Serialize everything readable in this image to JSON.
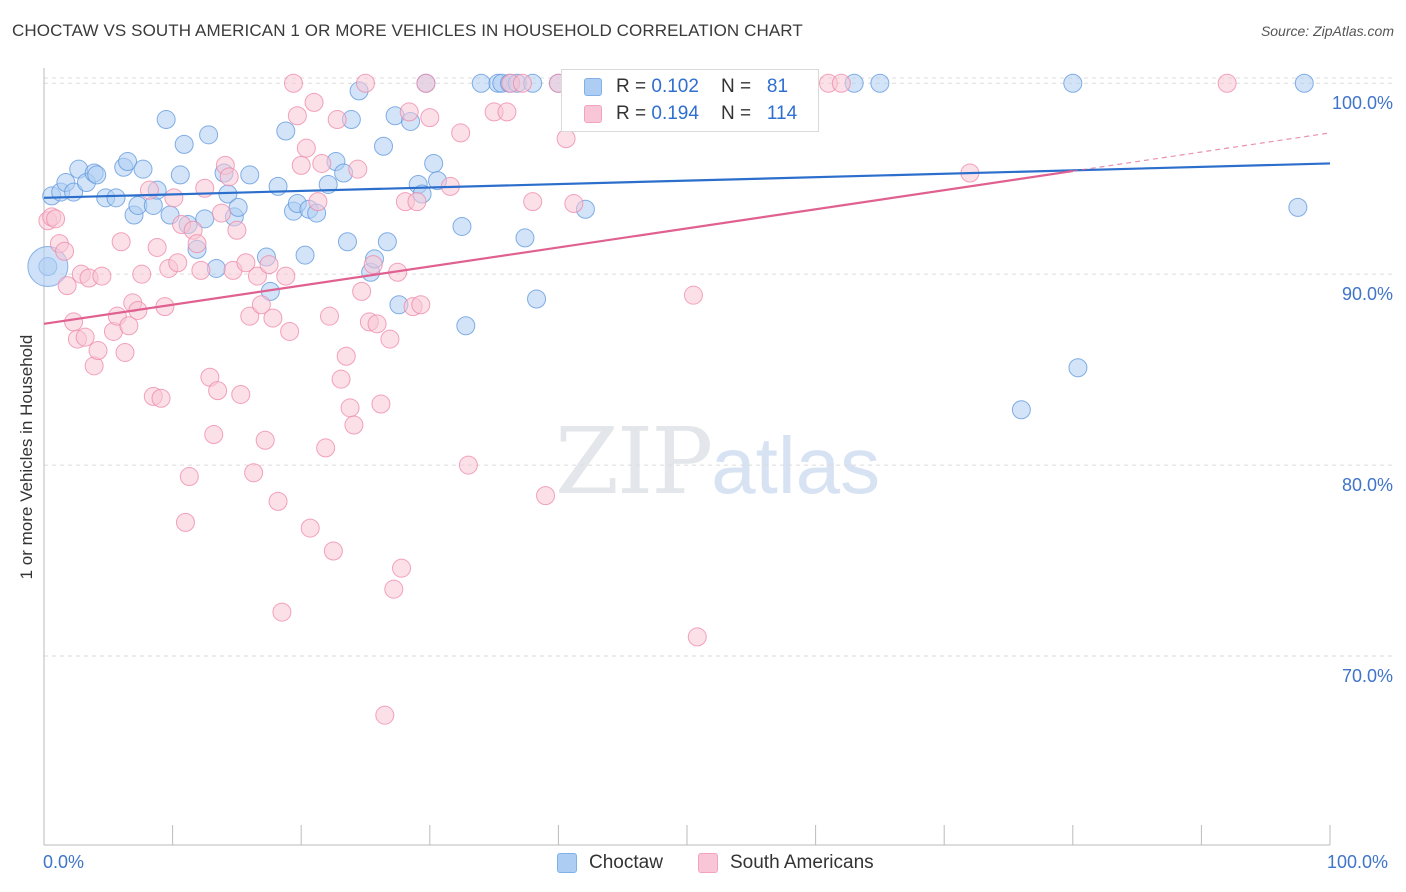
{
  "title": "CHOCTAW VS SOUTH AMERICAN 1 OR MORE VEHICLES IN HOUSEHOLD CORRELATION CHART",
  "source": "Source: ZipAtlas.com",
  "watermark": {
    "part1": "ZIP",
    "part2": "atlas"
  },
  "legend_top": {
    "rows": [
      {
        "r_label": "R = ",
        "r_value": "0.102",
        "n_label": "N = ",
        "n_value": "81",
        "color": "#7fb0e8"
      },
      {
        "r_label": "R = ",
        "r_value": "0.194",
        "n_label": "N = ",
        "n_value": "114",
        "color": "#f3a3bf"
      }
    ]
  },
  "legend_bottom": [
    {
      "label": "Choctaw",
      "color": "#aecdf3"
    },
    {
      "label": "South Americans",
      "color": "#f8c6d6"
    }
  ],
  "axes": {
    "y_label": "1 or more Vehicles in Household",
    "x_min_label": "0.0%",
    "x_max_label": "100.0%",
    "y_ticks": [
      {
        "value": 100,
        "label": "100.0%"
      },
      {
        "value": 90,
        "label": "90.0%"
      },
      {
        "value": 80,
        "label": "80.0%"
      },
      {
        "value": 70,
        "label": "70.0%"
      }
    ]
  },
  "chart_data": {
    "type": "scatter",
    "xlim": [
      0,
      100
    ],
    "ylim": [
      60.1,
      100.8
    ],
    "grid": true,
    "series": [
      {
        "name": "Choctaw",
        "color": "#5c95dd",
        "fill": "#aecdf3",
        "trend": {
          "x0": 0,
          "y0": 94.0,
          "x1": 100,
          "y1": 95.8,
          "color": "#2b6ecb"
        },
        "points": [
          [
            0.3,
            90.4
          ],
          [
            0.6,
            94.1
          ],
          [
            1.3,
            94.3
          ],
          [
            1.7,
            94.8
          ],
          [
            2.3,
            94.3
          ],
          [
            2.7,
            95.5
          ],
          [
            3.3,
            94.8
          ],
          [
            3.9,
            95.3
          ],
          [
            4.1,
            95.2
          ],
          [
            4.8,
            94.0
          ],
          [
            5.6,
            94.0
          ],
          [
            6.2,
            95.6
          ],
          [
            6.5,
            95.9
          ],
          [
            7.0,
            93.1
          ],
          [
            7.3,
            93.6
          ],
          [
            7.7,
            95.5
          ],
          [
            8.5,
            93.6
          ],
          [
            8.8,
            94.4
          ],
          [
            9.5,
            98.1
          ],
          [
            9.8,
            93.1
          ],
          [
            10.6,
            95.2
          ],
          [
            10.9,
            96.8
          ],
          [
            11.2,
            92.6
          ],
          [
            11.9,
            91.3
          ],
          [
            12.5,
            92.9
          ],
          [
            12.8,
            97.3
          ],
          [
            13.4,
            90.3
          ],
          [
            14.0,
            95.3
          ],
          [
            14.3,
            94.2
          ],
          [
            14.8,
            93.0
          ],
          [
            15.1,
            93.5
          ],
          [
            16.0,
            95.2
          ],
          [
            17.3,
            90.9
          ],
          [
            17.6,
            89.1
          ],
          [
            18.2,
            94.6
          ],
          [
            18.8,
            97.5
          ],
          [
            19.4,
            93.3
          ],
          [
            19.7,
            93.7
          ],
          [
            20.3,
            91.0
          ],
          [
            20.6,
            93.4
          ],
          [
            21.2,
            93.2
          ],
          [
            22.1,
            94.7
          ],
          [
            22.7,
            95.9
          ],
          [
            23.3,
            95.3
          ],
          [
            23.6,
            91.7
          ],
          [
            23.9,
            98.1
          ],
          [
            24.5,
            99.6
          ],
          [
            25.4,
            90.1
          ],
          [
            25.7,
            90.8
          ],
          [
            26.4,
            96.7
          ],
          [
            26.7,
            91.7
          ],
          [
            27.3,
            98.3
          ],
          [
            27.6,
            88.4
          ],
          [
            28.5,
            98.0
          ],
          [
            29.1,
            94.7
          ],
          [
            29.4,
            94.2
          ],
          [
            29.7,
            100.0
          ],
          [
            30.3,
            95.8
          ],
          [
            30.6,
            94.9
          ],
          [
            32.5,
            92.5
          ],
          [
            32.8,
            87.3
          ],
          [
            34.0,
            100.0
          ],
          [
            35.3,
            100.0
          ],
          [
            35.6,
            100.0
          ],
          [
            36.2,
            100.0
          ],
          [
            36.8,
            100.0
          ],
          [
            37.4,
            91.9
          ],
          [
            38.0,
            100.0
          ],
          [
            38.3,
            88.7
          ],
          [
            40.0,
            100.0
          ],
          [
            41.5,
            100.0
          ],
          [
            42.1,
            93.4
          ],
          [
            50.0,
            100.0
          ],
          [
            52.0,
            100.0
          ],
          [
            55.0,
            100.0
          ],
          [
            63.0,
            100.0
          ],
          [
            65.0,
            100.0
          ],
          [
            76.0,
            82.9
          ],
          [
            80.0,
            100.0
          ],
          [
            80.4,
            85.1
          ],
          [
            97.5,
            93.5
          ],
          [
            98.0,
            100.0
          ]
        ],
        "point_radius": 9,
        "large_point": {
          "x": 0.3,
          "y": 90.4,
          "r": 20
        }
      },
      {
        "name": "South Americans",
        "color": "#ef86a8",
        "fill": "#f8c6d6",
        "trend": {
          "x0": 0,
          "y0": 87.4,
          "x1": 80,
          "y1": 95.4,
          "x2": 100,
          "y2": 97.4,
          "color": "#e0608f"
        },
        "points": [
          [
            0.3,
            92.8
          ],
          [
            0.6,
            93.0
          ],
          [
            0.9,
            92.9
          ],
          [
            1.2,
            91.6
          ],
          [
            1.6,
            91.2
          ],
          [
            1.8,
            89.4
          ],
          [
            2.3,
            87.5
          ],
          [
            2.6,
            86.6
          ],
          [
            2.9,
            90.0
          ],
          [
            3.2,
            86.7
          ],
          [
            3.5,
            89.8
          ],
          [
            3.9,
            85.2
          ],
          [
            4.2,
            86.0
          ],
          [
            4.5,
            89.9
          ],
          [
            5.4,
            87.0
          ],
          [
            5.7,
            87.8
          ],
          [
            6.0,
            91.7
          ],
          [
            6.3,
            85.9
          ],
          [
            6.6,
            87.3
          ],
          [
            6.9,
            88.5
          ],
          [
            7.3,
            88.1
          ],
          [
            7.6,
            90.0
          ],
          [
            8.2,
            94.4
          ],
          [
            8.5,
            83.6
          ],
          [
            8.8,
            91.4
          ],
          [
            9.1,
            83.5
          ],
          [
            9.4,
            88.3
          ],
          [
            9.7,
            90.3
          ],
          [
            10.1,
            94.0
          ],
          [
            10.4,
            90.6
          ],
          [
            10.7,
            92.6
          ],
          [
            11.0,
            77.0
          ],
          [
            11.3,
            79.4
          ],
          [
            11.6,
            92.3
          ],
          [
            11.9,
            91.6
          ],
          [
            12.2,
            90.2
          ],
          [
            12.5,
            94.5
          ],
          [
            12.9,
            84.6
          ],
          [
            13.2,
            81.6
          ],
          [
            13.5,
            83.9
          ],
          [
            13.8,
            93.2
          ],
          [
            14.1,
            95.7
          ],
          [
            14.4,
            95.1
          ],
          [
            14.7,
            90.2
          ],
          [
            15.0,
            92.3
          ],
          [
            15.3,
            83.7
          ],
          [
            15.7,
            90.6
          ],
          [
            16.0,
            87.8
          ],
          [
            16.3,
            79.6
          ],
          [
            16.6,
            89.9
          ],
          [
            16.9,
            88.4
          ],
          [
            17.2,
            81.3
          ],
          [
            17.5,
            90.5
          ],
          [
            17.8,
            87.7
          ],
          [
            18.2,
            78.1
          ],
          [
            18.5,
            72.3
          ],
          [
            18.8,
            89.9
          ],
          [
            19.1,
            87.0
          ],
          [
            19.4,
            100.0
          ],
          [
            19.7,
            98.3
          ],
          [
            20.0,
            95.7
          ],
          [
            20.4,
            96.6
          ],
          [
            20.7,
            76.7
          ],
          [
            21.0,
            99.0
          ],
          [
            21.3,
            93.8
          ],
          [
            21.6,
            95.8
          ],
          [
            21.9,
            80.9
          ],
          [
            22.2,
            87.8
          ],
          [
            22.5,
            75.5
          ],
          [
            22.8,
            98.1
          ],
          [
            23.1,
            84.5
          ],
          [
            23.5,
            85.7
          ],
          [
            23.8,
            83.0
          ],
          [
            24.1,
            82.1
          ],
          [
            24.4,
            95.5
          ],
          [
            24.7,
            89.1
          ],
          [
            25.0,
            100.0
          ],
          [
            25.3,
            87.5
          ],
          [
            25.6,
            90.5
          ],
          [
            25.9,
            87.4
          ],
          [
            26.2,
            83.2
          ],
          [
            26.5,
            66.9
          ],
          [
            26.9,
            86.6
          ],
          [
            27.2,
            73.5
          ],
          [
            27.5,
            90.1
          ],
          [
            27.8,
            74.6
          ],
          [
            28.1,
            93.8
          ],
          [
            28.4,
            98.5
          ],
          [
            28.7,
            88.3
          ],
          [
            29.0,
            93.8
          ],
          [
            29.3,
            88.4
          ],
          [
            29.7,
            100.0
          ],
          [
            30.0,
            98.2
          ],
          [
            31.6,
            94.6
          ],
          [
            32.4,
            97.4
          ],
          [
            33.0,
            80.0
          ],
          [
            35.0,
            98.5
          ],
          [
            36.0,
            98.5
          ],
          [
            36.3,
            100.0
          ],
          [
            37.2,
            100.0
          ],
          [
            38.0,
            93.8
          ],
          [
            39.0,
            78.4
          ],
          [
            40.0,
            100.0
          ],
          [
            40.6,
            97.1
          ],
          [
            41.2,
            93.7
          ],
          [
            45.0,
            100.0
          ],
          [
            48.0,
            100.0
          ],
          [
            50.0,
            100.0
          ],
          [
            50.5,
            88.9
          ],
          [
            50.8,
            71.0
          ],
          [
            58.0,
            100.0
          ],
          [
            61.0,
            100.0
          ],
          [
            62.0,
            100.0
          ],
          [
            72.0,
            95.3
          ],
          [
            92.0,
            100.0
          ]
        ],
        "point_radius": 9
      }
    ]
  }
}
